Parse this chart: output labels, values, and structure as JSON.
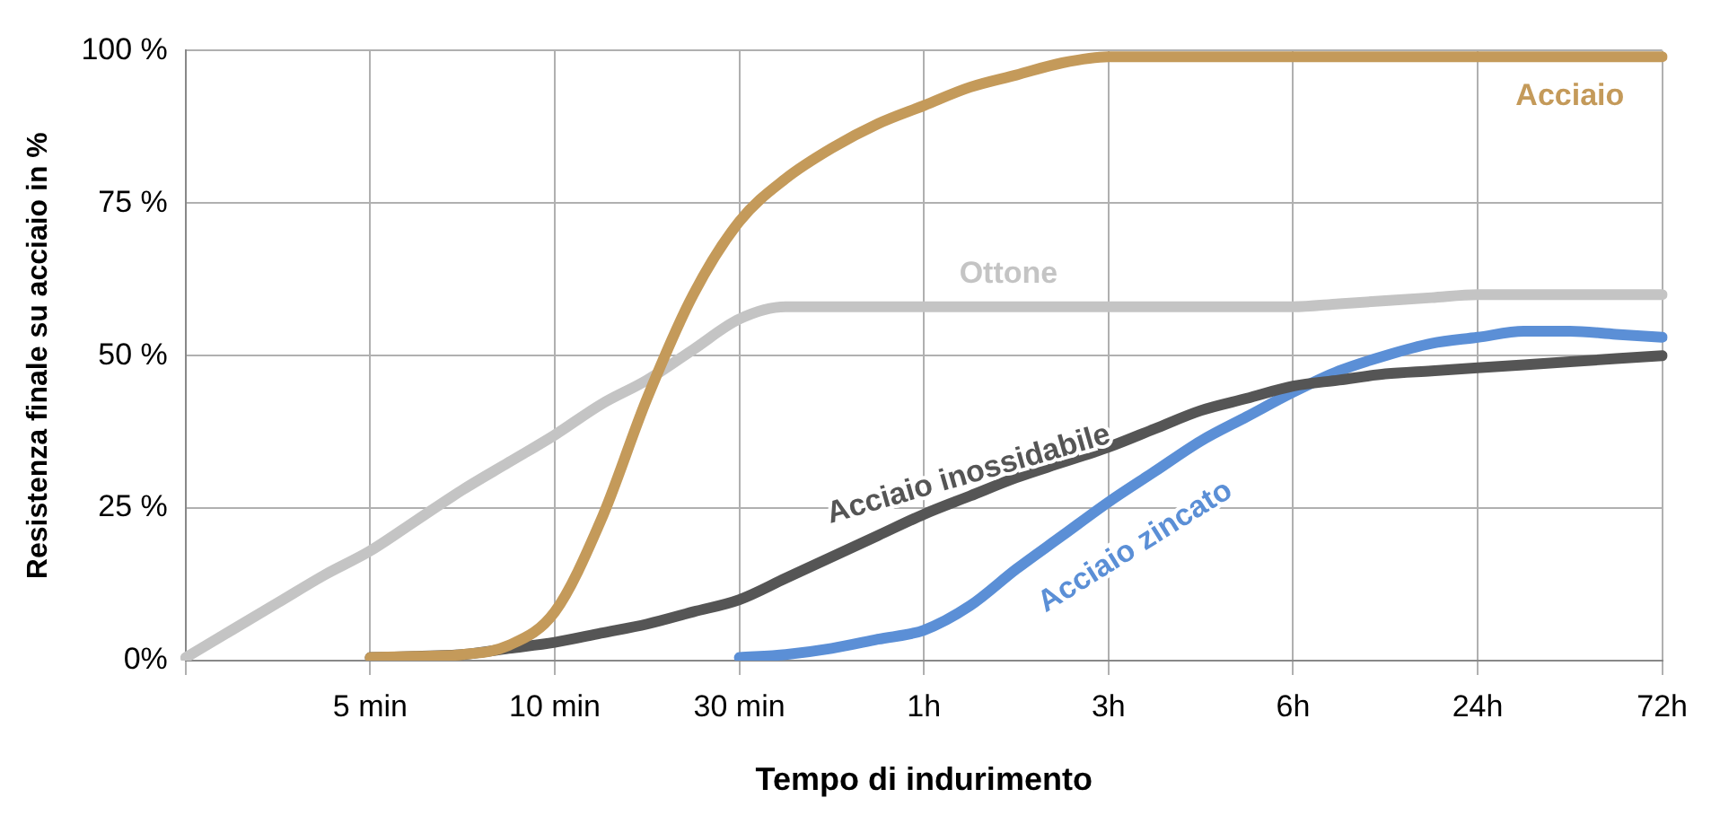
{
  "chart_data": {
    "type": "line",
    "xlabel": "Tempo di indurimento",
    "ylabel": "Resistenza finale su acciaio in %",
    "categories": [
      null,
      null,
      null,
      null,
      "5 min",
      null,
      null,
      null,
      "10 min",
      null,
      null,
      null,
      "30 min",
      null,
      null,
      null,
      "1h",
      null,
      null,
      null,
      "3h",
      null,
      null,
      null,
      "6h",
      null,
      null,
      null,
      "24h",
      null,
      null,
      null,
      "72h"
    ],
    "ylim": [
      0,
      100
    ],
    "yticks": [
      {
        "value": 0,
        "label": "0%"
      },
      {
        "value": 25,
        "label": "25 %"
      },
      {
        "value": 50,
        "label": "50 %"
      },
      {
        "value": 75,
        "label": "75 %"
      },
      {
        "value": 100,
        "label": "100 %"
      }
    ],
    "grid": true,
    "legend": false,
    "series": [
      {
        "name": "Acciaio",
        "color": "#c49a5a",
        "values": [
          null,
          null,
          null,
          null,
          0.5,
          0.7,
          1,
          2.5,
          8,
          23,
          43,
          60,
          72,
          79,
          84,
          88,
          91,
          94,
          96,
          98,
          99,
          99,
          99,
          99,
          99,
          99,
          99,
          99,
          99,
          99,
          99,
          99,
          99
        ]
      },
      {
        "name": "Ottone",
        "color": "#c4c4c4",
        "values": [
          0.5,
          5,
          9.5,
          14,
          18,
          23,
          28,
          32.5,
          37,
          42,
          46,
          51,
          56,
          58,
          58,
          58,
          58,
          58,
          58,
          58,
          58,
          58,
          58,
          58,
          58,
          58.5,
          59,
          59.5,
          60,
          60,
          60,
          60,
          60
        ]
      },
      {
        "name": "Acciaio inossidabile",
        "color": "#555555",
        "values": [
          null,
          null,
          null,
          null,
          0.5,
          0.7,
          1,
          2,
          3,
          4.5,
          6,
          8,
          10,
          13.5,
          17,
          20.5,
          24,
          27,
          30,
          32.5,
          35,
          38,
          41,
          43,
          45,
          46,
          47,
          47.5,
          48,
          48.5,
          49,
          49.5,
          50
        ]
      },
      {
        "name": "Acciaio zincato",
        "color": "#5b8fd6",
        "values": [
          null,
          null,
          null,
          null,
          null,
          null,
          null,
          null,
          null,
          null,
          null,
          null,
          0.5,
          1,
          2,
          3.5,
          5,
          9,
          15,
          20.5,
          26,
          31,
          36,
          40,
          44,
          47.5,
          50,
          52,
          53,
          54,
          54,
          53.5,
          53
        ]
      }
    ]
  }
}
